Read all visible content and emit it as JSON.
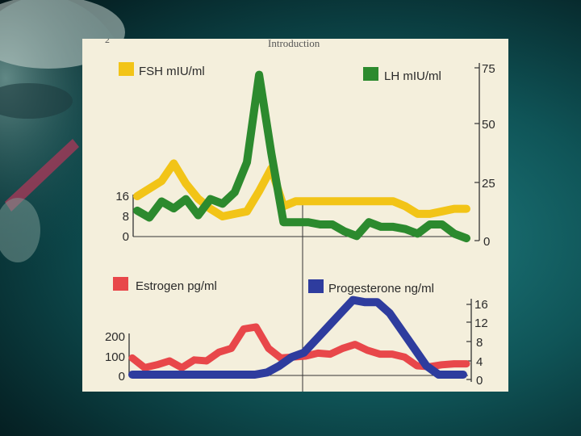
{
  "page": {
    "page_number": "2",
    "running_head": "Introduction"
  },
  "colors": {
    "fsh": "#f2c417",
    "lh": "#2c8a2e",
    "estrogen": "#e8474a",
    "progesterone": "#2e3c9e",
    "axis": "#333333"
  },
  "chart_data": [
    {
      "type": "line",
      "title": "",
      "x": [
        0,
        1,
        2,
        3,
        4,
        5,
        6,
        7,
        8,
        9,
        10,
        11,
        12,
        13,
        14,
        15,
        16,
        17,
        18,
        19,
        20,
        21,
        22,
        23,
        24,
        25,
        26,
        27
      ],
      "series": [
        {
          "name": "FSH mIU/ml",
          "axis": "left",
          "values": [
            16,
            19,
            22,
            29,
            21,
            15,
            11,
            8,
            9,
            10,
            18,
            27,
            12,
            14,
            14,
            14,
            14,
            14,
            14,
            14,
            14,
            14,
            12,
            9,
            9,
            10,
            11,
            11
          ]
        },
        {
          "name": "LH mIU/ml",
          "axis": "right",
          "values": [
            13,
            10,
            17,
            14,
            18,
            11,
            18,
            16,
            21,
            34,
            72,
            38,
            8,
            8,
            8,
            7,
            7,
            4,
            2,
            8,
            6,
            6,
            5,
            3,
            7,
            7,
            3,
            1
          ]
        }
      ],
      "left_axis": {
        "ticks": [
          "16",
          "8",
          "0"
        ],
        "range": [
          0,
          40
        ]
      },
      "right_axis": {
        "ticks": [
          "75",
          "50",
          "25",
          "0"
        ],
        "range": [
          0,
          75
        ]
      }
    },
    {
      "type": "line",
      "title": "",
      "x": [
        0,
        1,
        2,
        3,
        4,
        5,
        6,
        7,
        8,
        9,
        10,
        11,
        12,
        13,
        14,
        15,
        16,
        17,
        18,
        19,
        20,
        21,
        22,
        23,
        24,
        25,
        26,
        27
      ],
      "series": [
        {
          "name": "Estrogen pg/ml",
          "axis": "left",
          "values": [
            90,
            40,
            55,
            75,
            40,
            80,
            75,
            120,
            140,
            240,
            250,
            140,
            90,
            95,
            100,
            115,
            110,
            140,
            160,
            130,
            110,
            110,
            95,
            50,
            45,
            55,
            60,
            60
          ]
        },
        {
          "name": "Progesterone ng/ml",
          "axis": "right",
          "values": [
            0,
            0,
            0,
            0,
            0,
            0,
            0,
            0,
            0,
            0,
            0,
            0.5,
            2,
            4,
            5,
            8,
            11,
            14,
            17,
            16.5,
            16.5,
            14,
            10,
            6,
            2,
            0,
            0,
            0
          ]
        }
      ],
      "left_axis": {
        "ticks": [
          "200",
          "100",
          "0"
        ],
        "range": [
          0,
          260
        ]
      },
      "right_axis": {
        "ticks": [
          "16",
          "12",
          "8",
          "4",
          "0"
        ],
        "range": [
          0,
          16
        ]
      }
    }
  ]
}
